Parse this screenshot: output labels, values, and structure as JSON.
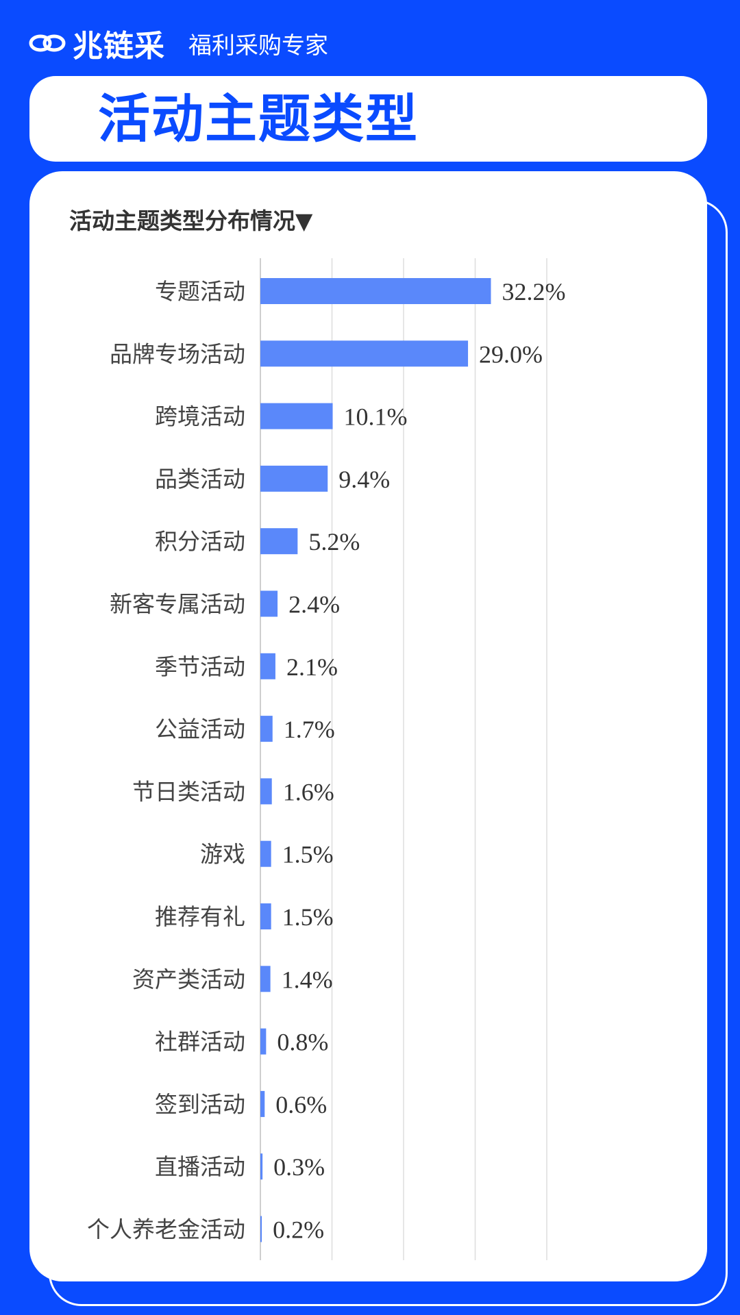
{
  "header": {
    "brand": "兆链采",
    "slogan": "福利采购专家",
    "logo_icon": "chain-link-icon"
  },
  "title": "活动主题类型",
  "colors": {
    "background": "#0a4bff",
    "bar": "#5a88fa",
    "grid": "#dddddd"
  },
  "chart_data": {
    "type": "bar",
    "orientation": "horizontal",
    "title": "活动主题类型分布情况▼",
    "categories": [
      "专题活动",
      "品牌专场活动",
      "跨境活动",
      "品类活动",
      "积分活动",
      "新客专属活动",
      "季节活动",
      "公益活动",
      "节日类活动",
      "游戏",
      "推荐有礼",
      "资产类活动",
      "社群活动",
      "签到活动",
      "直播活动",
      "个人养老金活动"
    ],
    "values": [
      32.2,
      29.0,
      10.1,
      9.4,
      5.2,
      2.4,
      2.1,
      1.7,
      1.6,
      1.5,
      1.5,
      1.4,
      0.8,
      0.6,
      0.3,
      0.2
    ],
    "labels": [
      "32.2%",
      "29.0%",
      "10.1%",
      "9.4%",
      "5.2%",
      "2.4%",
      "2.1%",
      "1.7%",
      "1.6%",
      "1.5%",
      "1.5%",
      "1.4%",
      "0.8%",
      "0.6%",
      "0.3%",
      "0.2%"
    ],
    "xlim": [
      0,
      40
    ],
    "grid": true,
    "grid_step": 10
  }
}
